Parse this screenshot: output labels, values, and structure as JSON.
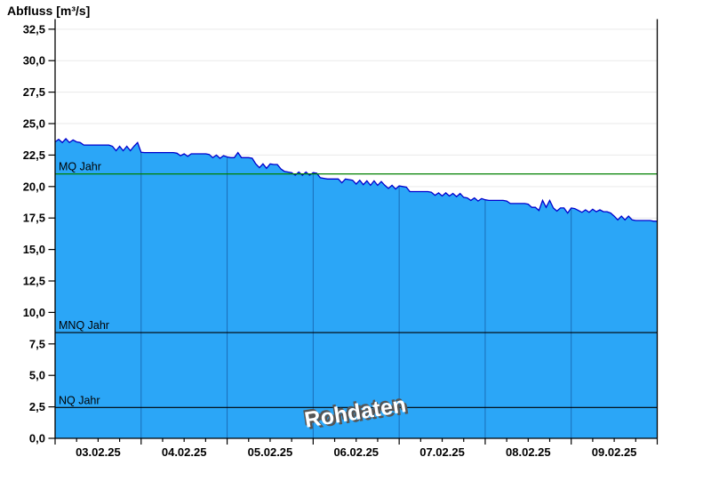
{
  "title": "Abfluss [m³/s]",
  "watermark": "Rohdaten",
  "colors": {
    "area_fill": "#2BA6F7",
    "data_line": "#0000CD",
    "day_gridline": "#1A6DB8",
    "h_gridline": "#EAEAEA",
    "axis": "#000000",
    "mq_line": "#008000",
    "mnq_line": "#000000",
    "nq_line": "#000000",
    "watermark_fill": "#FFFFFF",
    "watermark_shadow": "#555555"
  },
  "chart_data": {
    "type": "area",
    "title": "Abfluss [m³/s]",
    "ylabel": "Abfluss [m³/s]",
    "xlabel": "",
    "x_unit": "hours since 03.02.25 00:00",
    "x_range_hours": [
      0,
      168
    ],
    "ylim": [
      0,
      33.3
    ],
    "grid": {
      "horizontal": true,
      "vertical_day_lines_inside_area": true
    },
    "legend_position": "none",
    "y_ticks": [
      {
        "v": 0,
        "label": "0,0"
      },
      {
        "v": 2.5,
        "label": "2,5"
      },
      {
        "v": 5,
        "label": "5,0"
      },
      {
        "v": 7.5,
        "label": "7,5"
      },
      {
        "v": 10,
        "label": "10,0"
      },
      {
        "v": 12.5,
        "label": "12,5"
      },
      {
        "v": 15,
        "label": "15,0"
      },
      {
        "v": 17.5,
        "label": "17,5"
      },
      {
        "v": 20,
        "label": "20,0"
      },
      {
        "v": 22.5,
        "label": "22,5"
      },
      {
        "v": 25,
        "label": "25,0"
      },
      {
        "v": 27.5,
        "label": "27,5"
      },
      {
        "v": 30,
        "label": "30,0"
      },
      {
        "v": 32.5,
        "label": "32,5"
      }
    ],
    "x_day_labels": [
      {
        "label": "03.02.25",
        "center_hour": 12
      },
      {
        "label": "04.02.25",
        "center_hour": 36
      },
      {
        "label": "05.02.25",
        "center_hour": 60
      },
      {
        "label": "06.02.25",
        "center_hour": 84
      },
      {
        "label": "07.02.25",
        "center_hour": 108
      },
      {
        "label": "08.02.25",
        "center_hour": 132
      },
      {
        "label": "09.02.25",
        "center_hour": 156
      }
    ],
    "x_major_tick_interval_hours": 24,
    "x_minor_tick_interval_hours": 6,
    "reference_lines": [
      {
        "id": "mq",
        "label": "MQ Jahr",
        "value": 21.0,
        "color": "#008000"
      },
      {
        "id": "mnq",
        "label": "MNQ Jahr",
        "value": 8.4,
        "color": "#000000"
      },
      {
        "id": "nq",
        "label": "NQ Jahr",
        "value": 2.45,
        "color": "#000000"
      }
    ],
    "series": [
      {
        "name": "Abfluss Rohdaten",
        "fill": "#2BA6F7",
        "stroke": "#0000CD",
        "x_start_hour": 0,
        "x_step_hours": 1,
        "values_hourly": [
          23.55,
          23.75,
          23.5,
          23.8,
          23.5,
          23.7,
          23.55,
          23.5,
          23.3,
          23.3,
          23.3,
          23.3,
          23.3,
          23.3,
          23.3,
          23.3,
          23.2,
          22.85,
          23.2,
          22.85,
          23.2,
          22.85,
          23.2,
          23.5,
          22.72,
          22.7,
          22.7,
          22.7,
          22.7,
          22.7,
          22.7,
          22.7,
          22.7,
          22.7,
          22.65,
          22.45,
          22.6,
          22.4,
          22.6,
          22.6,
          22.6,
          22.6,
          22.6,
          22.55,
          22.3,
          22.5,
          22.25,
          22.45,
          22.35,
          22.3,
          22.3,
          22.7,
          22.3,
          22.3,
          22.3,
          22.25,
          21.8,
          21.5,
          21.8,
          21.45,
          21.8,
          21.75,
          21.75,
          21.4,
          21.2,
          21.15,
          21.1,
          20.9,
          21.15,
          20.9,
          21.15,
          20.9,
          21.1,
          21.05,
          20.7,
          20.65,
          20.6,
          20.6,
          20.6,
          20.6,
          20.3,
          20.6,
          20.55,
          20.5,
          20.2,
          20.5,
          20.15,
          20.45,
          20.1,
          20.45,
          20.1,
          20.4,
          20.1,
          19.85,
          20.1,
          19.8,
          20.05,
          20.0,
          19.95,
          19.6,
          19.6,
          19.6,
          19.6,
          19.6,
          19.6,
          19.55,
          19.3,
          19.5,
          19.25,
          19.5,
          19.25,
          19.45,
          19.2,
          19.45,
          19.15,
          19.1,
          18.9,
          19.1,
          18.85,
          19.05,
          18.95,
          18.9,
          18.9,
          18.9,
          18.9,
          18.9,
          18.85,
          18.65,
          18.65,
          18.65,
          18.65,
          18.65,
          18.6,
          18.35,
          18.35,
          18.1,
          18.9,
          18.35,
          18.9,
          18.3,
          18.05,
          18.3,
          18.3,
          17.9,
          18.3,
          18.25,
          18.1,
          17.95,
          18.15,
          17.95,
          18.2,
          18.0,
          18.15,
          18.0,
          18.0,
          17.9,
          17.65,
          17.35,
          17.65,
          17.35,
          17.65,
          17.35,
          17.3,
          17.3,
          17.3,
          17.3,
          17.3,
          17.25,
          17.25
        ]
      }
    ]
  }
}
